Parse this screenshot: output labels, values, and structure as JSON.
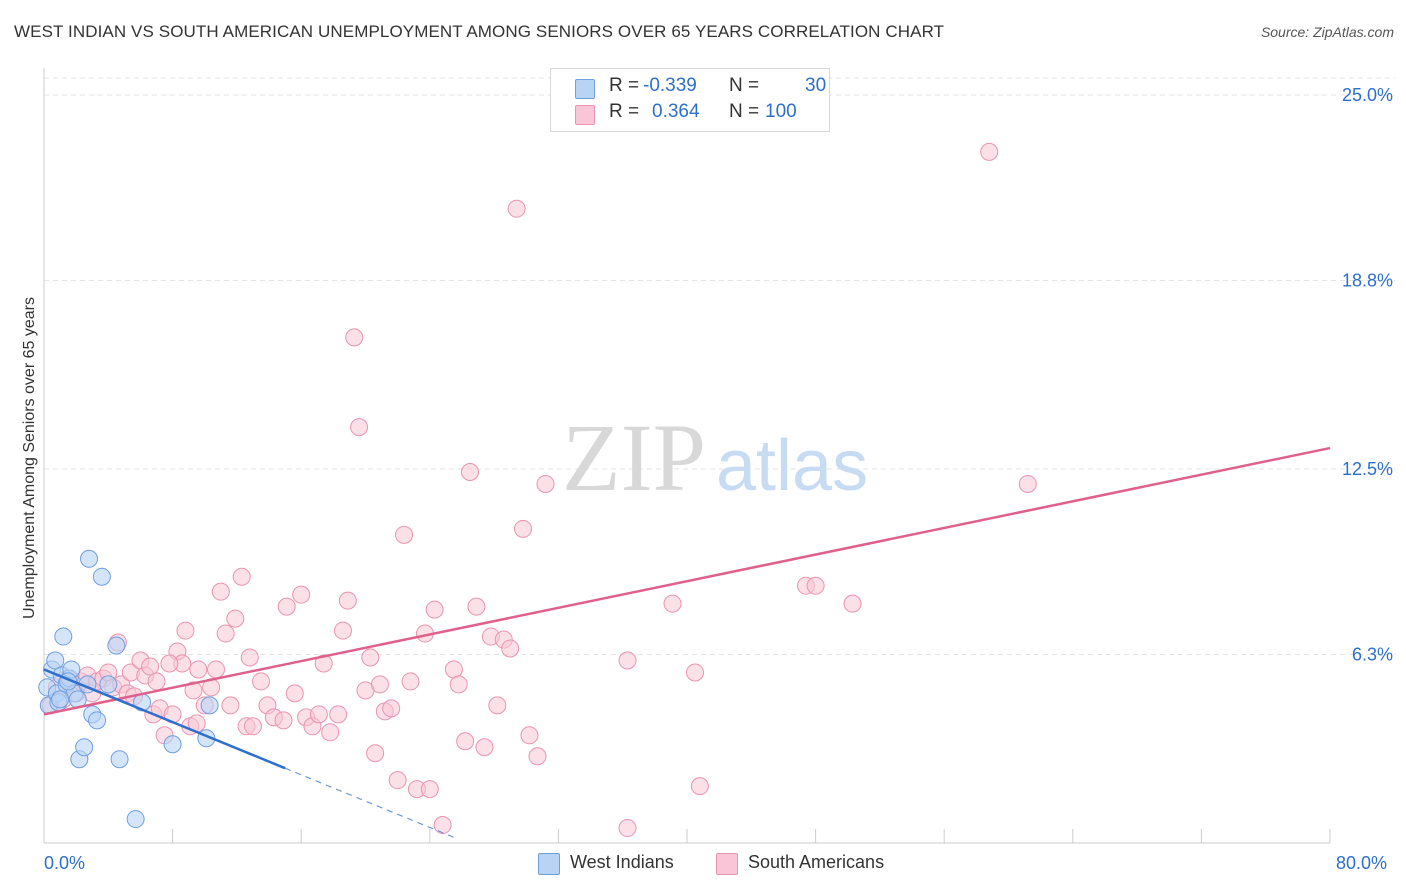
{
  "title": "WEST INDIAN VS SOUTH AMERICAN UNEMPLOYMENT AMONG SENIORS OVER 65 YEARS CORRELATION CHART",
  "source": "Source: ZipAtlas.com",
  "watermark": {
    "zip": "ZIP",
    "atlas": "atlas"
  },
  "stats": {
    "west": {
      "r_label": "R =",
      "r": "-0.339",
      "n_label": "N =",
      "n": "30"
    },
    "south": {
      "r_label": "R =",
      "r": "0.364",
      "n_label": "N =",
      "n": "100"
    }
  },
  "legend": {
    "west": "West Indians",
    "south": "South Americans"
  },
  "colors": {
    "west_fill": "#b9d3f5",
    "west_stroke": "#6f9fe0",
    "west_line": "#2f6fcc",
    "south_fill": "#f8c6d6",
    "south_stroke": "#ea94b1",
    "south_line": "#e0608c",
    "axis_value": "#2d6fcf",
    "grid": "#e3e3e3"
  },
  "chart_data": {
    "type": "scatter",
    "title": "WEST INDIAN VS SOUTH AMERICAN UNEMPLOYMENT AMONG SENIORS OVER 65 YEARS CORRELATION CHART",
    "xlabel": "",
    "ylabel": "Unemployment Among Seniors over 65 years",
    "xlim": [
      0,
      80
    ],
    "ylim": [
      0,
      25.0
    ],
    "x_tick_labels": [
      "0.0%",
      "80.0%"
    ],
    "y_ticks": [
      {
        "value": 6.3,
        "label": "6.3%"
      },
      {
        "value": 12.5,
        "label": "12.5%"
      },
      {
        "value": 18.8,
        "label": "18.8%"
      },
      {
        "value": 25.0,
        "label": "25.0%"
      }
    ],
    "grid": true,
    "series": [
      {
        "name": "West Indians",
        "r": -0.339,
        "n": 30,
        "trend": {
          "x0": 0,
          "y0": 5.8,
          "x1": 15.0,
          "y1": 2.5,
          "dash_to_x": 25.5
        },
        "points": [
          [
            0.2,
            5.2
          ],
          [
            0.3,
            4.6
          ],
          [
            0.5,
            5.8
          ],
          [
            0.7,
            6.1
          ],
          [
            0.8,
            5.0
          ],
          [
            0.9,
            4.7
          ],
          [
            1.1,
            5.6
          ],
          [
            1.2,
            6.9
          ],
          [
            1.4,
            5.3
          ],
          [
            1.6,
            5.5
          ],
          [
            1.7,
            5.8
          ],
          [
            1.9,
            5.0
          ],
          [
            2.1,
            4.8
          ],
          [
            2.2,
            2.8
          ],
          [
            2.5,
            3.2
          ],
          [
            2.7,
            5.3
          ],
          [
            2.8,
            9.5
          ],
          [
            3.0,
            4.3
          ],
          [
            3.3,
            4.1
          ],
          [
            3.6,
            8.9
          ],
          [
            4.0,
            5.3
          ],
          [
            4.5,
            6.6
          ],
          [
            4.7,
            2.8
          ],
          [
            5.7,
            0.8
          ],
          [
            6.1,
            4.7
          ],
          [
            8.0,
            3.3
          ],
          [
            10.1,
            3.5
          ],
          [
            10.3,
            4.6
          ],
          [
            1.0,
            4.8
          ],
          [
            1.5,
            5.4
          ]
        ]
      },
      {
        "name": "South Americans",
        "r": 0.364,
        "n": 100,
        "trend": {
          "x0": 0,
          "y0": 4.3,
          "x1": 80,
          "y1": 13.2
        },
        "points": [
          [
            0.4,
            4.6
          ],
          [
            0.8,
            5.2
          ],
          [
            1.2,
            4.8
          ],
          [
            1.5,
            5.5
          ],
          [
            2.0,
            5.0
          ],
          [
            2.3,
            5.4
          ],
          [
            2.7,
            5.6
          ],
          [
            3.0,
            5.0
          ],
          [
            3.3,
            5.4
          ],
          [
            3.7,
            5.5
          ],
          [
            4.0,
            5.7
          ],
          [
            4.3,
            5.2
          ],
          [
            4.6,
            6.7
          ],
          [
            4.8,
            5.3
          ],
          [
            5.2,
            5.0
          ],
          [
            5.4,
            5.7
          ],
          [
            5.6,
            4.9
          ],
          [
            6.0,
            6.1
          ],
          [
            6.3,
            5.6
          ],
          [
            6.6,
            5.9
          ],
          [
            6.8,
            4.3
          ],
          [
            7.0,
            5.4
          ],
          [
            7.2,
            4.5
          ],
          [
            7.5,
            3.6
          ],
          [
            8.0,
            4.3
          ],
          [
            8.3,
            6.4
          ],
          [
            8.6,
            6.0
          ],
          [
            8.8,
            7.1
          ],
          [
            9.1,
            3.9
          ],
          [
            9.3,
            5.1
          ],
          [
            9.6,
            5.8
          ],
          [
            10.0,
            4.6
          ],
          [
            10.4,
            5.2
          ],
          [
            10.7,
            5.8
          ],
          [
            11.0,
            8.4
          ],
          [
            11.3,
            7.0
          ],
          [
            11.6,
            4.6
          ],
          [
            11.9,
            7.5
          ],
          [
            12.3,
            8.9
          ],
          [
            12.6,
            3.9
          ],
          [
            13.0,
            3.9
          ],
          [
            13.5,
            5.4
          ],
          [
            13.9,
            4.6
          ],
          [
            14.3,
            4.2
          ],
          [
            14.9,
            4.1
          ],
          [
            15.1,
            7.9
          ],
          [
            15.6,
            5.0
          ],
          [
            16.0,
            8.3
          ],
          [
            16.3,
            4.2
          ],
          [
            16.7,
            3.9
          ],
          [
            17.1,
            4.3
          ],
          [
            17.4,
            6.0
          ],
          [
            17.8,
            3.7
          ],
          [
            18.3,
            4.3
          ],
          [
            18.6,
            7.1
          ],
          [
            18.9,
            8.1
          ],
          [
            19.3,
            16.9
          ],
          [
            19.6,
            13.9
          ],
          [
            20.0,
            5.1
          ],
          [
            20.3,
            6.2
          ],
          [
            20.6,
            3.0
          ],
          [
            20.9,
            5.3
          ],
          [
            21.2,
            4.4
          ],
          [
            21.6,
            4.5
          ],
          [
            22.0,
            2.1
          ],
          [
            22.4,
            10.3
          ],
          [
            22.8,
            5.4
          ],
          [
            23.2,
            1.8
          ],
          [
            23.7,
            7.0
          ],
          [
            24.0,
            1.8
          ],
          [
            24.3,
            7.8
          ],
          [
            24.8,
            0.6
          ],
          [
            25.5,
            5.8
          ],
          [
            25.8,
            5.3
          ],
          [
            26.2,
            3.4
          ],
          [
            26.5,
            12.4
          ],
          [
            26.9,
            7.9
          ],
          [
            27.4,
            3.2
          ],
          [
            27.8,
            6.9
          ],
          [
            28.2,
            4.6
          ],
          [
            28.6,
            6.8
          ],
          [
            29.0,
            6.5
          ],
          [
            29.4,
            21.2
          ],
          [
            29.8,
            10.5
          ],
          [
            30.2,
            3.6
          ],
          [
            30.7,
            2.9
          ],
          [
            31.2,
            12.0
          ],
          [
            39.1,
            8.0
          ],
          [
            40.5,
            5.7
          ],
          [
            40.8,
            1.9
          ],
          [
            36.3,
            0.5
          ],
          [
            47.4,
            8.6
          ],
          [
            48.0,
            8.6
          ],
          [
            50.3,
            8.0
          ],
          [
            58.8,
            23.1
          ],
          [
            61.2,
            12.0
          ],
          [
            36.3,
            6.1
          ],
          [
            7.8,
            6.0
          ],
          [
            9.5,
            4.0
          ],
          [
            12.8,
            6.2
          ]
        ]
      }
    ]
  }
}
